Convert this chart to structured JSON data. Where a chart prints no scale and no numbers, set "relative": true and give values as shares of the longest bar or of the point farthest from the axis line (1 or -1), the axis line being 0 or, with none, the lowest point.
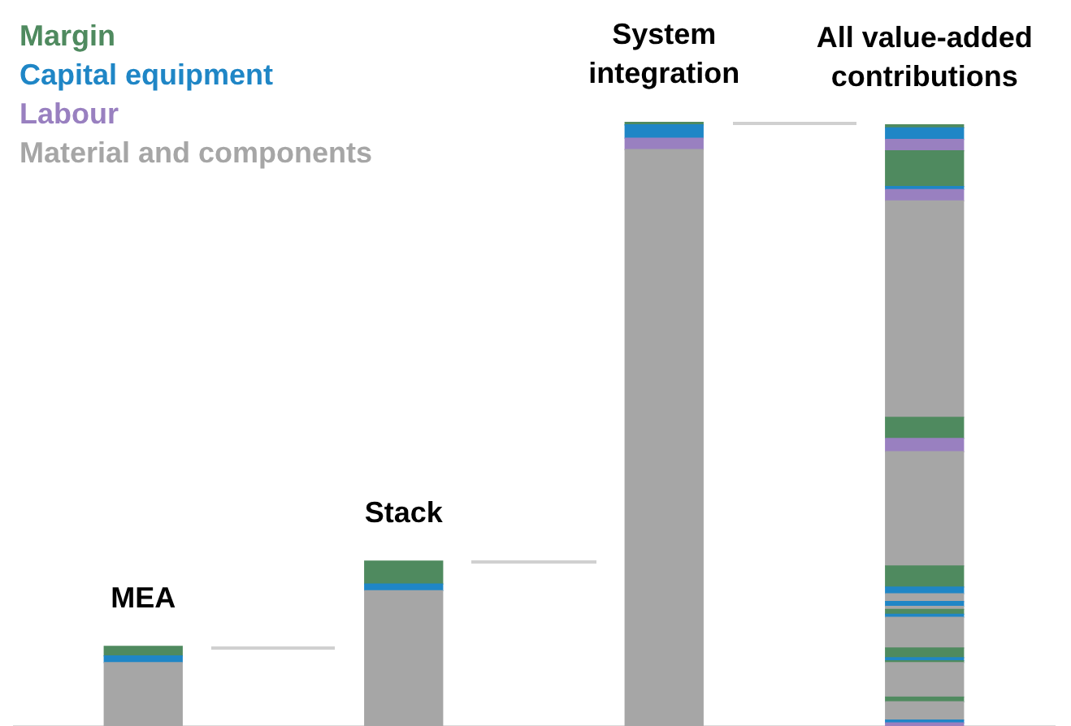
{
  "chart_data": {
    "type": "bar",
    "stacked": true,
    "relative": true,
    "legend": "top left",
    "grid": false,
    "categories": [
      "MEA",
      "Stack",
      "System integration",
      "All value-added contributions"
    ],
    "series": [
      {
        "name": "Material and components",
        "color": "#a6a6a6",
        "values": [
          0.105,
          0.224,
          0.954,
          null
        ]
      },
      {
        "name": "Labour",
        "color": "#9980c0",
        "values": [
          null,
          null,
          0.019,
          null
        ]
      },
      {
        "name": "Capital equipment",
        "color": "#1f86c6",
        "values": [
          0.011,
          0.011,
          0.022,
          null
        ]
      },
      {
        "name": "Margin",
        "color": "#4f8a5f",
        "values": [
          0.016,
          0.038,
          0.005,
          null
        ]
      },
      {
        "color": "#9980c0",
        "values": [
          null,
          null,
          null,
          0.005
        ]
      },
      {
        "color": "#1f86c6",
        "values": [
          null,
          null,
          null,
          0.005
        ]
      },
      {
        "color": "#a6a6a6",
        "values": [
          null,
          null,
          null,
          0.03
        ]
      },
      {
        "color": "#4f8a5f",
        "values": [
          null,
          null,
          null,
          0.008
        ]
      },
      {
        "color": "#a6a6a6",
        "values": [
          null,
          null,
          null,
          0.057
        ]
      },
      {
        "color": "#4f8a5f",
        "values": [
          null,
          null,
          null,
          0.003
        ]
      },
      {
        "color": "#1f86c6",
        "values": [
          null,
          null,
          null,
          0.005
        ]
      },
      {
        "color": "#4f8a5f",
        "values": [
          null,
          null,
          null,
          0.016
        ]
      },
      {
        "color": "#a6a6a6",
        "values": [
          null,
          null,
          null,
          0.051
        ]
      },
      {
        "color": "#1f86c6",
        "values": [
          null,
          null,
          null,
          0.005
        ]
      },
      {
        "color": "#4f8a5f",
        "values": [
          null,
          null,
          null,
          0.008
        ]
      },
      {
        "color": "#a6a6a6",
        "values": [
          null,
          null,
          null,
          0.005
        ]
      },
      {
        "color": "#1f86c6",
        "values": [
          null,
          null,
          null,
          0.008
        ]
      },
      {
        "color": "#a6a6a6",
        "values": [
          null,
          null,
          null,
          0.013
        ]
      },
      {
        "color": "#1f86c6",
        "values": [
          null,
          null,
          null,
          0.011
        ]
      },
      {
        "color": "#4f8a5f",
        "values": [
          null,
          null,
          null,
          0.035
        ]
      },
      {
        "color": "#a6a6a6",
        "values": [
          null,
          null,
          null,
          0.189
        ]
      },
      {
        "color": "#9980c0",
        "values": [
          null,
          null,
          null,
          0.022
        ]
      },
      {
        "color": "#4f8a5f",
        "values": [
          null,
          null,
          null,
          0.035
        ]
      },
      {
        "color": "#a6a6a6",
        "values": [
          null,
          null,
          null,
          0.358
        ]
      },
      {
        "color": "#9980c0",
        "values": [
          null,
          null,
          null,
          0.019
        ]
      },
      {
        "color": "#1f86c6",
        "values": [
          null,
          null,
          null,
          0.005
        ]
      },
      {
        "color": "#4f8a5f",
        "values": [
          null,
          null,
          null,
          0.059
        ]
      },
      {
        "color": "#9980c0",
        "values": [
          null,
          null,
          null,
          0.019
        ]
      },
      {
        "color": "#1f86c6",
        "values": [
          null,
          null,
          null,
          0.019
        ]
      },
      {
        "color": "#4f8a5f",
        "values": [
          null,
          null,
          null,
          0.005
        ]
      }
    ]
  }
}
